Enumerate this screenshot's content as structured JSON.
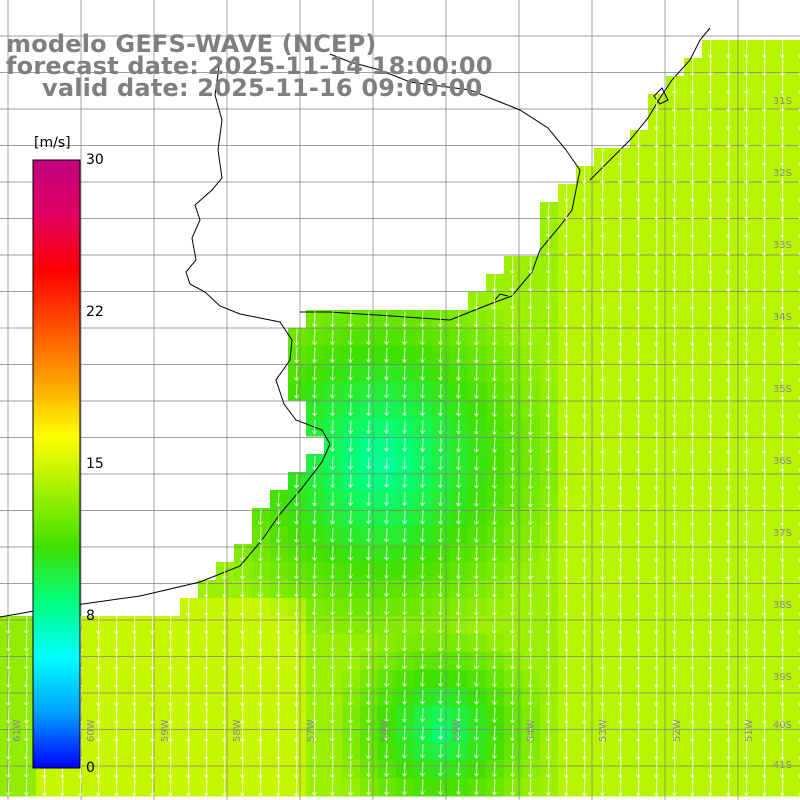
{
  "header": {
    "line1": "modelo GEFS-WAVE (NCEP)",
    "line2": "forecast date: 2025-11-14 18:00:00",
    "line3": "valid date: 2025-11-16 09:00:00"
  },
  "colorbar": {
    "unit": "[m/s]",
    "ticks": [
      "30",
      "22",
      "15",
      "8",
      "0"
    ],
    "tick_values": [
      30,
      22,
      15,
      8,
      0
    ],
    "min": 0,
    "max": 30,
    "colors": [
      "#0000ff",
      "#00a0ff",
      "#00ffff",
      "#00ff80",
      "#40e000",
      "#a0f000",
      "#ffff00",
      "#ffa000",
      "#ff5000",
      "#ff0000",
      "#e00060",
      "#c00080"
    ]
  },
  "map": {
    "lat_labels": [
      "31S",
      "32S",
      "33S",
      "34S",
      "35S",
      "36S",
      "37S",
      "38S",
      "39S",
      "40S",
      "41S"
    ],
    "lon_labels": [
      "61W",
      "60W",
      "59W",
      "58W",
      "57W",
      "56W",
      "55W",
      "54W",
      "53W",
      "52W",
      "51W"
    ],
    "ocean_color": "#ffffff",
    "land_line_color": "#000000",
    "grid_color": "#808080",
    "arrow_color": "#ffffff"
  }
}
